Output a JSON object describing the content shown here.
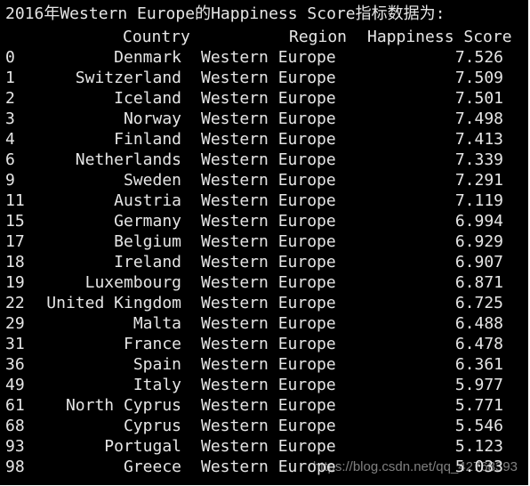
{
  "console": {
    "heading": "2016年Western Europe的Happiness Score指标数据为:",
    "columns": {
      "country": "Country",
      "region": "Region",
      "score": "Happiness Score"
    },
    "rows": [
      {
        "index": "0",
        "country": "Denmark",
        "region": "Western Europe",
        "score": "7.526"
      },
      {
        "index": "1",
        "country": "Switzerland",
        "region": "Western Europe",
        "score": "7.509"
      },
      {
        "index": "2",
        "country": "Iceland",
        "region": "Western Europe",
        "score": "7.501"
      },
      {
        "index": "3",
        "country": "Norway",
        "region": "Western Europe",
        "score": "7.498"
      },
      {
        "index": "4",
        "country": "Finland",
        "region": "Western Europe",
        "score": "7.413"
      },
      {
        "index": "6",
        "country": "Netherlands",
        "region": "Western Europe",
        "score": "7.339"
      },
      {
        "index": "9",
        "country": "Sweden",
        "region": "Western Europe",
        "score": "7.291"
      },
      {
        "index": "11",
        "country": "Austria",
        "region": "Western Europe",
        "score": "7.119"
      },
      {
        "index": "15",
        "country": "Germany",
        "region": "Western Europe",
        "score": "6.994"
      },
      {
        "index": "17",
        "country": "Belgium",
        "region": "Western Europe",
        "score": "6.929"
      },
      {
        "index": "18",
        "country": "Ireland",
        "region": "Western Europe",
        "score": "6.907"
      },
      {
        "index": "19",
        "country": "Luxembourg",
        "region": "Western Europe",
        "score": "6.871"
      },
      {
        "index": "22",
        "country": "United Kingdom",
        "region": "Western Europe",
        "score": "6.725"
      },
      {
        "index": "29",
        "country": "Malta",
        "region": "Western Europe",
        "score": "6.488"
      },
      {
        "index": "31",
        "country": "France",
        "region": "Western Europe",
        "score": "6.478"
      },
      {
        "index": "36",
        "country": "Spain",
        "region": "Western Europe",
        "score": "6.361"
      },
      {
        "index": "49",
        "country": "Italy",
        "region": "Western Europe",
        "score": "5.977"
      },
      {
        "index": "61",
        "country": "North Cyprus",
        "region": "Western Europe",
        "score": "5.771"
      },
      {
        "index": "68",
        "country": "Cyprus",
        "region": "Western Europe",
        "score": "5.546"
      },
      {
        "index": "93",
        "country": "Portugal",
        "region": "Western Europe",
        "score": "5.123"
      },
      {
        "index": "98",
        "country": "Greece",
        "region": "Western Europe",
        "score": "5.033"
      }
    ]
  },
  "watermark": "https://blog.csdn.net/qq_42768393",
  "colors": {
    "background": "#000000",
    "text": "#e6e6e6"
  }
}
